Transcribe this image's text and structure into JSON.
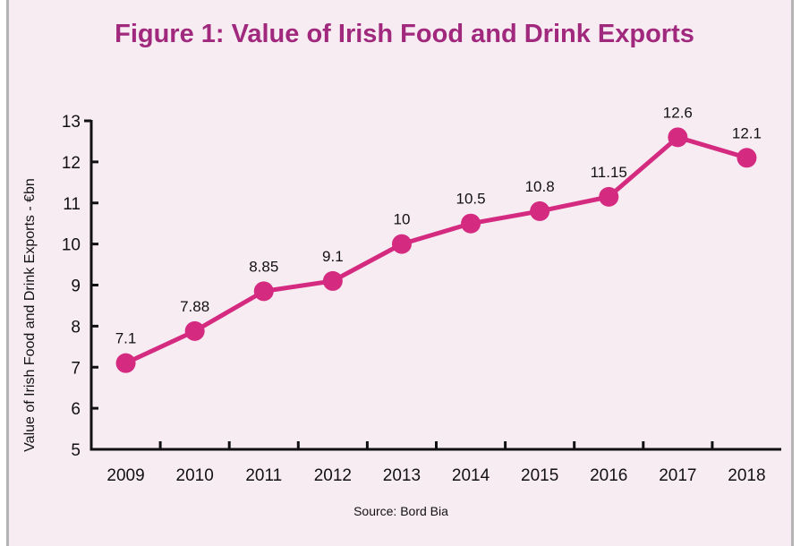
{
  "chart_data": {
    "type": "line",
    "title": "Figure 1: Value of Irish Food and Drink Exports",
    "xlabel": "",
    "ylabel": "Value of Irish Food and Drink Exports - €bn",
    "categories": [
      "2009",
      "2010",
      "2011",
      "2012",
      "2013",
      "2014",
      "2015",
      "2016",
      "2017",
      "2018"
    ],
    "series": [
      {
        "name": "Exports",
        "values": [
          7.1,
          7.88,
          8.85,
          9.1,
          10,
          10.5,
          10.8,
          11.15,
          12.6,
          12.1
        ],
        "labels": [
          "7.1",
          "7.88",
          "8.85",
          "9.1",
          "10",
          "10.5",
          "10.8",
          "11.15",
          "12.6",
          "12.1"
        ],
        "color": "#d42a80"
      }
    ],
    "ylim": [
      5,
      13
    ],
    "yticks": [
      5,
      6,
      7,
      8,
      9,
      10,
      11,
      12,
      13
    ],
    "grid": false,
    "legend": "none",
    "source": "Source: Bord Bia"
  },
  "colors": {
    "background": "#f8ecf3",
    "title": "#a0297d",
    "line": "#d42a80",
    "axis": "#111111"
  }
}
